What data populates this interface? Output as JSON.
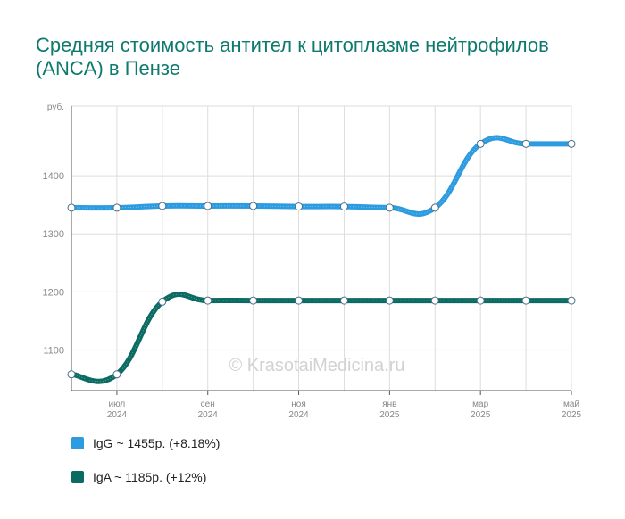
{
  "title": "Средняя стоимость антител к цитоплазме нейтрофилов (ANCA) в Пензе",
  "watermark": "© KrasotaiMedicina.ru",
  "chart_data": {
    "type": "line",
    "y_unit": "руб.",
    "ylim": [
      1030,
      1520
    ],
    "yticks": [
      1100,
      1200,
      1300,
      1400
    ],
    "x_tick_labels": [
      {
        "x": 1,
        "month": "июл",
        "year": "2024"
      },
      {
        "x": 3,
        "month": "сен",
        "year": "2024"
      },
      {
        "x": 5,
        "month": "ноя",
        "year": "2024"
      },
      {
        "x": 7,
        "month": "янв",
        "year": "2025"
      },
      {
        "x": 9,
        "month": "мар",
        "year": "2025"
      },
      {
        "x": 11,
        "month": "май",
        "year": "2025"
      }
    ],
    "x_points": [
      "июн 2024",
      "июл 2024",
      "авг 2024",
      "сен 2024",
      "окт 2024",
      "ноя 2024",
      "дек 2024",
      "янв 2025",
      "фев 2025",
      "мар 2025",
      "апр 2025",
      "май 2025"
    ],
    "grid": true,
    "series": [
      {
        "name": "IgG",
        "color": "#2d9be0",
        "values": [
          1345,
          1345,
          1348,
          1348,
          1348,
          1347,
          1347,
          1345,
          1345,
          1455,
          1455,
          1455
        ]
      },
      {
        "name": "IgA",
        "color": "#0b6b62",
        "values": [
          1058,
          1058,
          1183,
          1185,
          1185,
          1185,
          1185,
          1185,
          1185,
          1185,
          1185,
          1185
        ]
      }
    ]
  },
  "legend": [
    {
      "label": "IgG ~ 1455р. (+8.18%)",
      "color": "#2d9be0"
    },
    {
      "label": "IgA ~ 1185р. (+12%)",
      "color": "#0b6b62"
    }
  ]
}
